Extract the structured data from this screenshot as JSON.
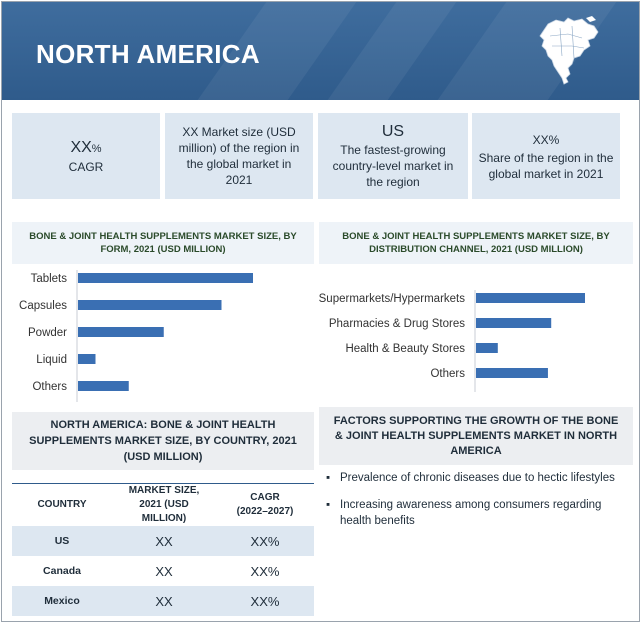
{
  "banner": {
    "title": "NORTH AMERICA",
    "map_icon": "north-america-map-icon"
  },
  "kpis": [
    {
      "value": "XX",
      "unit": "%",
      "label": "CAGR"
    },
    {
      "label": "XX Market size (USD million) of the region in the global market in 2021"
    },
    {
      "value": "US",
      "label": "The fastest-growing country-level market in the region"
    },
    {
      "value": "XX%",
      "label": "Share of the region in the global market in 2021"
    }
  ],
  "colors": {
    "banner": "#2f5b8b",
    "bar": "#3a6fb3",
    "panel": "#dde7f1"
  },
  "chart_data": [
    {
      "type": "bar",
      "orientation": "horizontal",
      "title": "BONE & JOINT HEALTH SUPPLEMENTS MARKET SIZE, BY FORM, 2021 (USD MILLION)",
      "categories": [
        "Tablets",
        "Capsules",
        "Powder",
        "Liquid",
        "Others"
      ],
      "values": [
        100,
        82,
        49,
        10,
        29
      ],
      "xlim": [
        0,
        100
      ],
      "grid": false,
      "axis_values_shown": false
    },
    {
      "type": "bar",
      "orientation": "horizontal",
      "title": "BONE & JOINT HEALTH SUPPLEMENTS MARKET SIZE, BY DISTRIBUTION CHANNEL, 2021 (USD MILLION)",
      "categories": [
        "Supermarkets/Hypermarkets",
        "Pharmacies & Drug Stores",
        "Health & Beauty Stores",
        "Others"
      ],
      "values": [
        100,
        69,
        20,
        66
      ],
      "xlim": [
        0,
        100
      ],
      "grid": false,
      "axis_values_shown": false
    }
  ],
  "country_table": {
    "title": "NORTH AMERICA: BONE & JOINT HEALTH SUPPLEMENTS MARKET SIZE, BY COUNTRY, 2021 (USD MILLION)",
    "headers": [
      "COUNTRY",
      "MARKET SIZE, 2021 (USD MILLION)",
      "CAGR (2022–2027)"
    ],
    "rows": [
      [
        "US",
        "XX",
        "XX%"
      ],
      [
        "Canada",
        "XX",
        "XX%"
      ],
      [
        "Mexico",
        "XX",
        "XX%"
      ]
    ]
  },
  "factors": {
    "title": "FACTORS SUPPORTING THE GROWTH OF THE BONE & JOINT HEALTH SUPPLEMENTS MARKET IN NORTH AMERICA",
    "bullet": "▪",
    "items": [
      "Prevalence of chronic diseases due to hectic lifestyles",
      "Increasing awareness among consumers regarding health benefits"
    ]
  }
}
